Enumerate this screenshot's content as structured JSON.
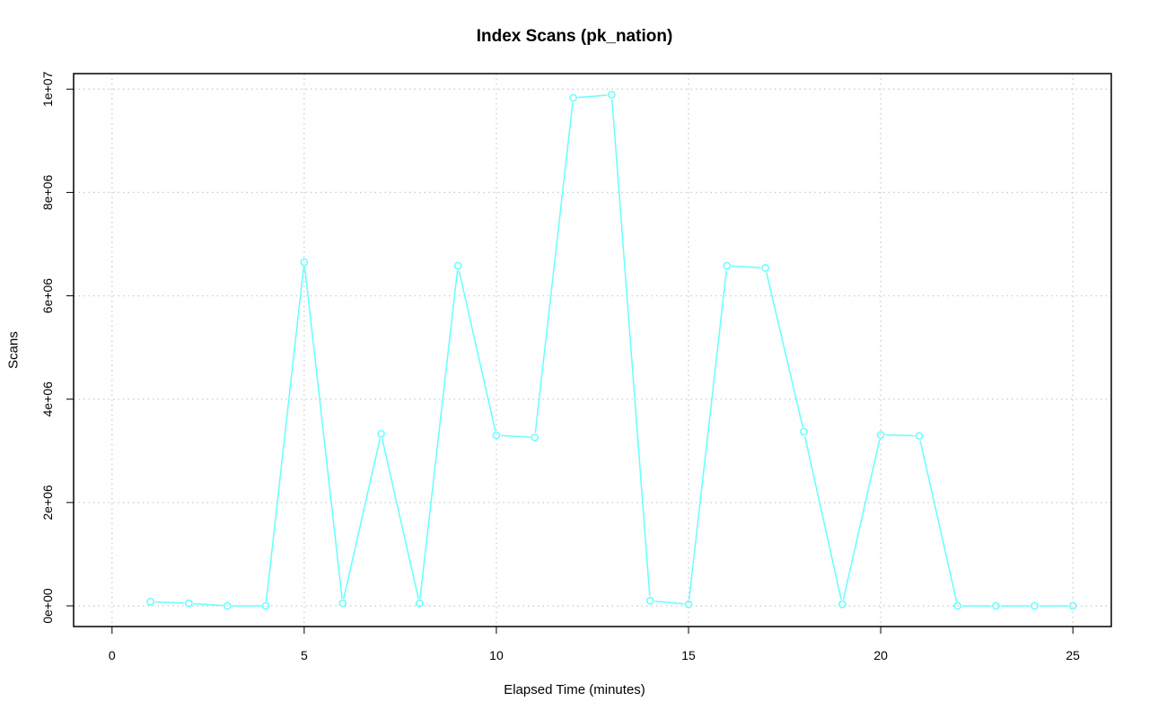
{
  "chart_data": {
    "type": "line",
    "title": "Index Scans (pk_nation)",
    "xlabel": "Elapsed Time (minutes)",
    "ylabel": "Scans",
    "xlim": [
      -1,
      26
    ],
    "ylim": [
      -400000,
      10300000
    ],
    "x_ticks": [
      0,
      5,
      10,
      15,
      20,
      25
    ],
    "x_tick_labels": [
      "0",
      "5",
      "10",
      "15",
      "20",
      "25"
    ],
    "y_ticks": [
      0,
      2000000,
      4000000,
      6000000,
      8000000,
      10000000
    ],
    "y_tick_labels": [
      "0e+00",
      "2e+06",
      "4e+06",
      "6e+06",
      "8e+06",
      "1e+07"
    ],
    "grid": true,
    "series": [
      {
        "color": "#66ffff",
        "marker": "circle",
        "x": [
          1,
          2,
          3,
          4,
          5,
          6,
          7,
          8,
          9,
          10,
          11,
          12,
          13,
          14,
          15,
          16,
          17,
          18,
          19,
          20,
          21,
          22,
          23,
          24,
          25
        ],
        "values": [
          80000,
          50000,
          0,
          0,
          6650000,
          50000,
          3330000,
          50000,
          6580000,
          3300000,
          3260000,
          9830000,
          9890000,
          100000,
          30000,
          6580000,
          6540000,
          3370000,
          30000,
          3310000,
          3290000,
          0,
          0,
          0,
          0
        ]
      }
    ]
  }
}
